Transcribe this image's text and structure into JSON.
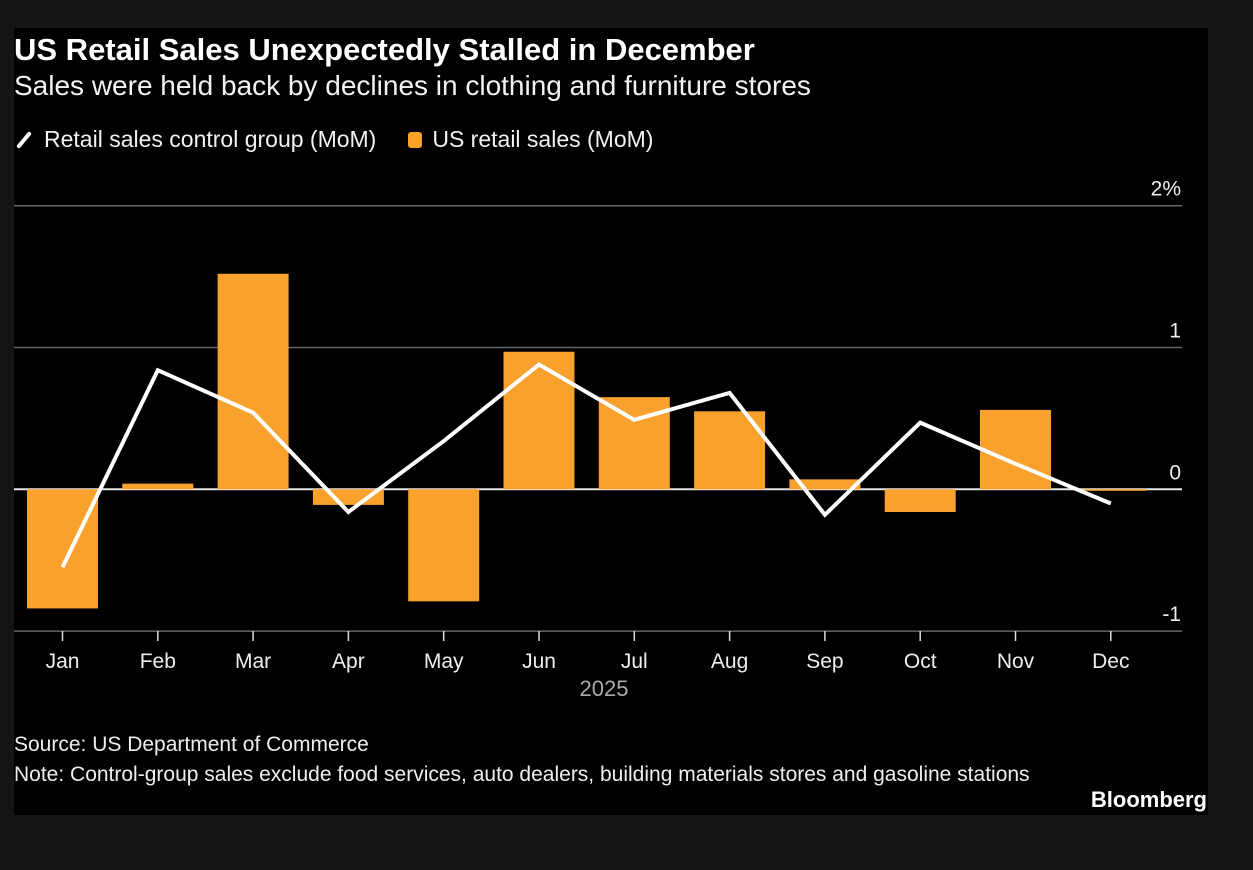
{
  "title": "US Retail Sales Unexpectedly Stalled in December",
  "subtitle": "Sales were held back by declines in clothing and furniture stores",
  "legend": [
    {
      "label": "Retail sales control group (MoM)",
      "icon": "line-swatch-icon",
      "color": "#ffffff"
    },
    {
      "label": "US retail sales (MoM)",
      "icon": "square-swatch-icon",
      "color": "#f9a12d"
    }
  ],
  "footer": {
    "source": "Source: US Department of Commerce",
    "note": "Note: Control-group sales exclude food services, auto dealers, building materials stores and gasoline stations",
    "brand": "Bloomberg"
  },
  "chart_data": {
    "type": "bar+line",
    "title": "US Retail Sales Unexpectedly Stalled in December",
    "subtitle": "Sales were held back by declines in clothing and furniture stores",
    "categories": [
      "Jan",
      "Feb",
      "Mar",
      "Apr",
      "May",
      "Jun",
      "Jul",
      "Aug",
      "Sep",
      "Oct",
      "Nov",
      "Dec"
    ],
    "xlabel": "2025",
    "ylim": [
      -1,
      2
    ],
    "yticks": [
      {
        "value": 2,
        "label": "2%"
      },
      {
        "value": 1,
        "label": "1"
      },
      {
        "value": 0,
        "label": "0"
      },
      {
        "value": -1,
        "label": "-1"
      }
    ],
    "grid": true,
    "legend_position": "top-left",
    "series": [
      {
        "name": "US retail sales (MoM)",
        "type": "bar",
        "color": "#f9a12d",
        "values": [
          -0.84,
          0.04,
          1.52,
          -0.11,
          -0.79,
          0.97,
          0.65,
          0.55,
          0.07,
          -0.16,
          0.56,
          -0.01
        ]
      },
      {
        "name": "Retail sales control group (MoM)",
        "type": "line",
        "color": "#ffffff",
        "values": [
          -0.55,
          0.84,
          0.54,
          -0.16,
          0.34,
          0.88,
          0.49,
          0.68,
          -0.18,
          0.47,
          0.18,
          -0.1
        ]
      }
    ]
  }
}
